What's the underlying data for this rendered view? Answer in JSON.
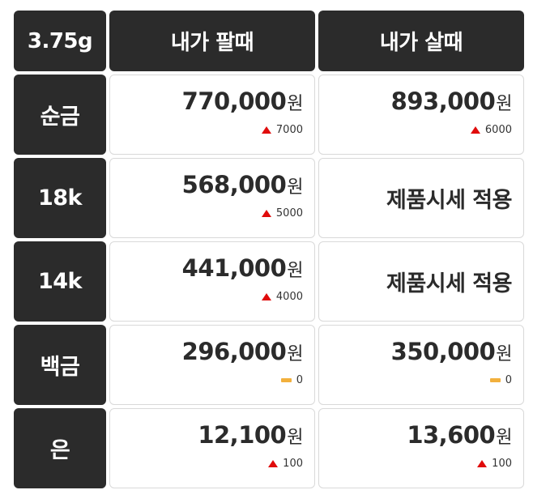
{
  "header": {
    "weight_label": "3.75g",
    "sell_label": "내가 팔때",
    "buy_label": "내가 살때"
  },
  "unit": "원",
  "colors": {
    "up": "#e00b0b",
    "flat": "#f2b03d",
    "header_bg": "#2b2b2b"
  },
  "rows": [
    {
      "label": "순금",
      "sell": {
        "price": "770,000",
        "change": "7000",
        "trend": "up"
      },
      "buy": {
        "price": "893,000",
        "change": "6000",
        "trend": "up"
      }
    },
    {
      "label": "18k",
      "sell": {
        "price": "568,000",
        "change": "5000",
        "trend": "up"
      },
      "buy": {
        "note": "제품시세 적용"
      }
    },
    {
      "label": "14k",
      "sell": {
        "price": "441,000",
        "change": "4000",
        "trend": "up"
      },
      "buy": {
        "note": "제품시세 적용"
      }
    },
    {
      "label": "백금",
      "sell": {
        "price": "296,000",
        "change": "0",
        "trend": "flat"
      },
      "buy": {
        "price": "350,000",
        "change": "0",
        "trend": "flat"
      }
    },
    {
      "label": "은",
      "sell": {
        "price": "12,100",
        "change": "100",
        "trend": "up"
      },
      "buy": {
        "price": "13,600",
        "change": "100",
        "trend": "up"
      }
    }
  ]
}
